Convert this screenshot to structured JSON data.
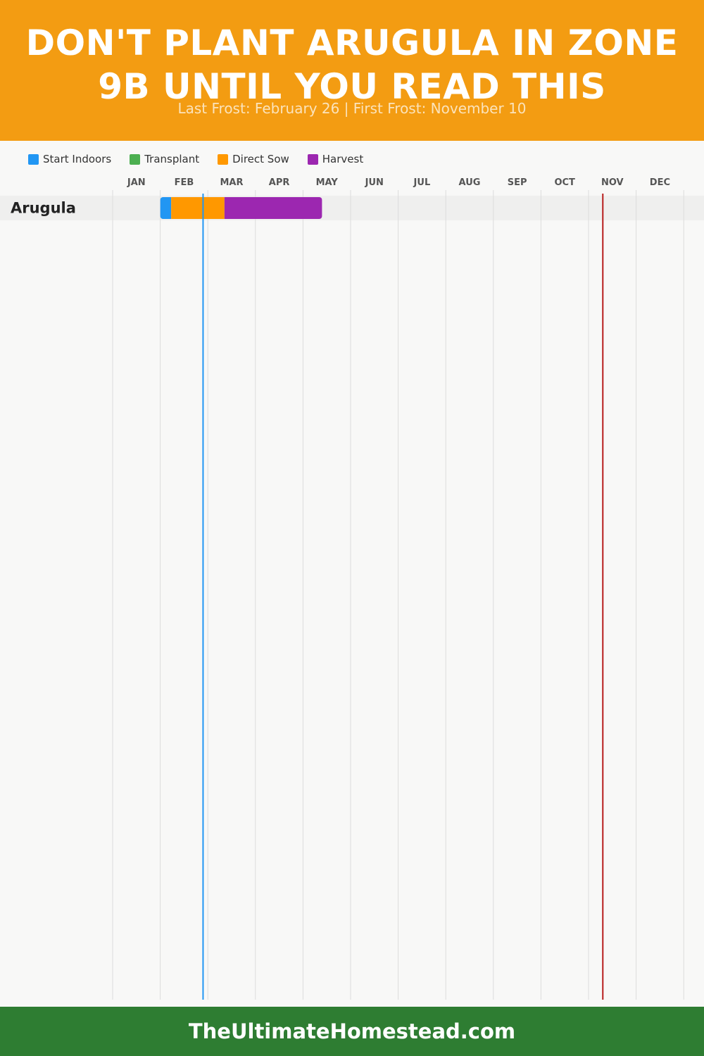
{
  "header": {
    "title": "DON'T PLANT ARUGULA IN ZONE 9B UNTIL YOU READ THIS",
    "subtitle": "Last Frost: February 26 | First Frost: November 10",
    "bg_color": "#f39c12"
  },
  "legend": [
    {
      "label": "Start Indoors",
      "color": "#2196f3"
    },
    {
      "label": "Transplant",
      "color": "#4caf50"
    },
    {
      "label": "Direct Sow",
      "color": "#ff9800"
    },
    {
      "label": "Harvest",
      "color": "#9c27b0"
    }
  ],
  "chart_data": {
    "type": "gantt",
    "months": [
      "JAN",
      "FEB",
      "MAR",
      "APR",
      "MAY",
      "JUN",
      "JUL",
      "AUG",
      "SEP",
      "OCT",
      "NOV",
      "DEC"
    ],
    "crops": [
      {
        "name": "Arugula",
        "phases": [
          {
            "phase": "Start Indoors",
            "start_month": 2.0,
            "end_month": 2.23
          },
          {
            "phase": "Direct Sow",
            "start_month": 2.23,
            "end_month": 3.35
          },
          {
            "phase": "Harvest",
            "start_month": 3.35,
            "end_month": 5.4
          }
        ]
      }
    ],
    "markers": [
      {
        "type": "last-frost",
        "date": "February 26",
        "month_value": 2.9,
        "color": "#2196f3"
      },
      {
        "type": "first-frost",
        "date": "November 10",
        "month_value": 11.3,
        "color": "#b71c1c"
      }
    ],
    "grid": true
  },
  "footer": {
    "text": "TheUltimateHomestead.com",
    "bg_color": "#2e7d32"
  }
}
